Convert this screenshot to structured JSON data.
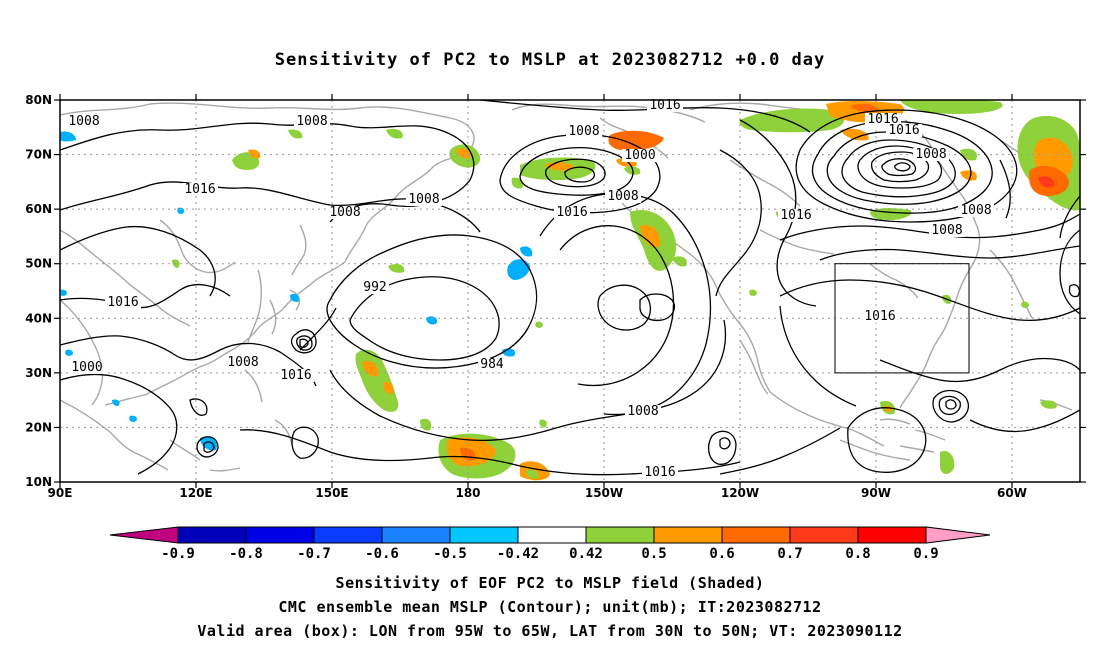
{
  "title": "Sensitivity of PC2 to MSLP at 2023082712 +0.0 day",
  "map": {
    "lat_ticks": [
      "80N",
      "70N",
      "60N",
      "50N",
      "40N",
      "30N",
      "20N",
      "10N"
    ],
    "lon_ticks": [
      "90E",
      "120E",
      "150E",
      "180",
      "150W",
      "120W",
      "90W",
      "60W"
    ],
    "valid_box": {
      "lon_from": "95W",
      "lon_to": "65W",
      "lat_from": "30N",
      "lat_to": "50N"
    },
    "contour_labels": [
      "1008",
      "1008",
      "1016",
      "1008",
      "1008",
      "1016",
      "1008",
      "1016",
      "1000",
      "992",
      "984",
      "1008",
      "1016",
      "1008",
      "1000",
      "1008",
      "1016",
      "1016",
      "1016",
      "1016",
      "1008",
      "1008",
      "1008",
      "1016",
      "1016"
    ],
    "colors": {
      "coast": "#a8a8a8",
      "contour": "#000000",
      "grid": "#999999",
      "pos_050": "#8fd13a",
      "pos_060": "#ff9a00",
      "pos_070": "#ff6a00",
      "pos_080": "#ff3a1a",
      "neg_050": "#00b0ff"
    }
  },
  "colorbar": {
    "labels": [
      "-0.9",
      "-0.8",
      "-0.7",
      "-0.6",
      "-0.5",
      "-0.42",
      "0.42",
      "0.5",
      "0.6",
      "0.7",
      "0.8",
      "0.9"
    ],
    "colors": [
      "#c0007f",
      "#0000b8",
      "#0000e6",
      "#0a3cff",
      "#1b82ff",
      "#00c8ff",
      "#ffffff",
      "#8fd13a",
      "#ff9a00",
      "#ff6a00",
      "#ff3a1a",
      "#ff0000",
      "#ff9fc8"
    ]
  },
  "captions": [
    "Sensitivity of EOF PC2 to MSLP field (Shaded)",
    "CMC ensemble mean MSLP (Contour); unit(mb); IT:2023082712",
    "Valid area (box): LON from 95W to 65W, LAT from 30N to 50N; VT: 2023090112"
  ]
}
